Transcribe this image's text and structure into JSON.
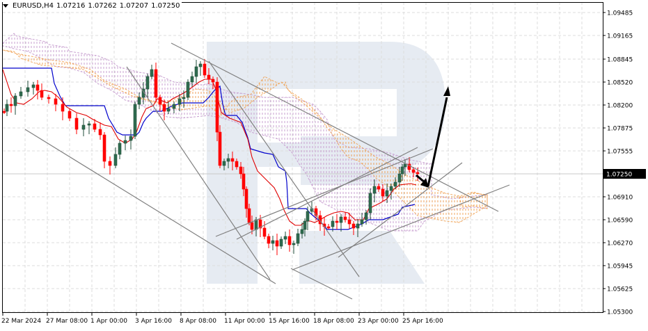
{
  "header": {
    "symbol": "EURUSD,H4",
    "open": "1.07216",
    "high": "1.07262",
    "low": "1.07207",
    "close": "1.07250"
  },
  "price_axis": {
    "labels": [
      "1.09485",
      "1.09165",
      "1.08845",
      "1.08520",
      "1.08200",
      "1.07875",
      "1.07555",
      "1.06910",
      "1.06590",
      "1.06270",
      "1.05945",
      "1.05625",
      "1.05300"
    ],
    "current_price": "1.07250"
  },
  "time_axis": {
    "labels": [
      "22 Mar 2024",
      "27 Mar 08:00",
      "1 Apr 00:00",
      "3 Apr 16:00",
      "8 Apr 08:00",
      "11 Apr 00:00",
      "15 Apr 16:00",
      "18 Apr 08:00",
      "23 Apr 00:00",
      "25 Apr 16:00"
    ]
  },
  "colors": {
    "bull_candle": "#2e6b4f",
    "bear_candle": "#ff0000",
    "tenkan": "#e00000",
    "kijun": "#0000cc",
    "cloud_bull": "#c8a0d0",
    "cloud_bear": "#f0a050",
    "trendline": "#808080",
    "forecast_arrow": "#000000",
    "grid": "#d8d8d8",
    "watermark": "#e6ebf2"
  },
  "chart_data": {
    "type": "candlestick",
    "title": "EURUSD,H4",
    "instrument": "EURUSD",
    "timeframe": "H4",
    "ohlc_last": {
      "open": 1.07216,
      "high": 1.07262,
      "low": 1.07207,
      "close": 1.0725
    },
    "ylim": [
      1.053,
      1.0965
    ],
    "yticks": [
      1.09485,
      1.09165,
      1.08845,
      1.0852,
      1.082,
      1.07875,
      1.07555,
      1.0725,
      1.0691,
      1.0659,
      1.0627,
      1.05945,
      1.05625,
      1.053
    ],
    "xticks": [
      "22 Mar 2024",
      "27 Mar 08:00",
      "1 Apr 00:00",
      "3 Apr 16:00",
      "8 Apr 08:00",
      "11 Apr 00:00",
      "15 Apr 16:00",
      "18 Apr 08:00",
      "23 Apr 00:00",
      "25 Apr 16:00"
    ],
    "indicators": [
      "Ichimoku Kinko Hyo (Tenkan-sen red, Kijun-sen blue, Kumo cloud)"
    ],
    "approx_close_path": [
      {
        "x": "22 Mar 2024",
        "close": 1.081
      },
      {
        "x": "27 Mar 08:00",
        "close": 1.0825
      },
      {
        "x": "28 Mar",
        "close": 1.0785
      },
      {
        "x": "1 Apr 00:00",
        "close": 1.0735
      },
      {
        "x": "2 Apr",
        "close": 1.077
      },
      {
        "x": "3 Apr 16:00",
        "close": 1.083
      },
      {
        "x": "4 Apr",
        "close": 1.087
      },
      {
        "x": "5 Apr",
        "close": 1.0835
      },
      {
        "x": "8 Apr 08:00",
        "close": 1.0855
      },
      {
        "x": "9 Apr",
        "close": 1.087
      },
      {
        "x": "10 Apr",
        "close": 1.0725
      },
      {
        "x": "11 Apr 00:00",
        "close": 1.073
      },
      {
        "x": "12 Apr",
        "close": 1.065
      },
      {
        "x": "15 Apr 16:00",
        "close": 1.0625
      },
      {
        "x": "16 Apr",
        "close": 1.062
      },
      {
        "x": "17 Apr",
        "close": 1.0675
      },
      {
        "x": "18 Apr 08:00",
        "close": 1.0665
      },
      {
        "x": "19 Apr",
        "close": 1.0655
      },
      {
        "x": "22 Apr",
        "close": 1.065
      },
      {
        "x": "23 Apr 00:00",
        "close": 1.0655
      },
      {
        "x": "24 Apr",
        "close": 1.0705
      },
      {
        "x": "25 Apr 16:00",
        "close": 1.0725
      }
    ],
    "annotations": [
      "Descending channel trendlines from late March to mid April",
      "Converging triangle lines around 1.0700-1.0730",
      "Forecast arrows: short dip to ~1.0710 then rise toward ~1.0855"
    ],
    "grid": true
  }
}
